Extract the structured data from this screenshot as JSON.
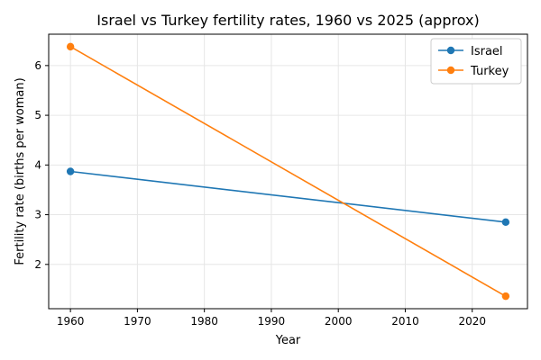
{
  "chart_data": {
    "type": "line",
    "title": "Israel vs Turkey fertility rates, 1960 vs 2025 (approx)",
    "xlabel": "Year",
    "ylabel": "Fertility rate (births per woman)",
    "x": [
      1960,
      2025
    ],
    "series": [
      {
        "name": "Israel",
        "values": [
          3.87,
          2.85
        ],
        "color": "#1f77b4"
      },
      {
        "name": "Turkey",
        "values": [
          6.38,
          1.36
        ],
        "color": "#ff7f0e"
      }
    ],
    "xlim": [
      1956.75,
      2028.25
    ],
    "ylim": [
      1.109,
      6.631
    ],
    "xticks": [
      1960,
      1970,
      1980,
      1990,
      2000,
      2010,
      2020
    ],
    "yticks": [
      2,
      3,
      4,
      5,
      6
    ],
    "grid": true,
    "legend_position": "top-right",
    "marker": "circle"
  }
}
